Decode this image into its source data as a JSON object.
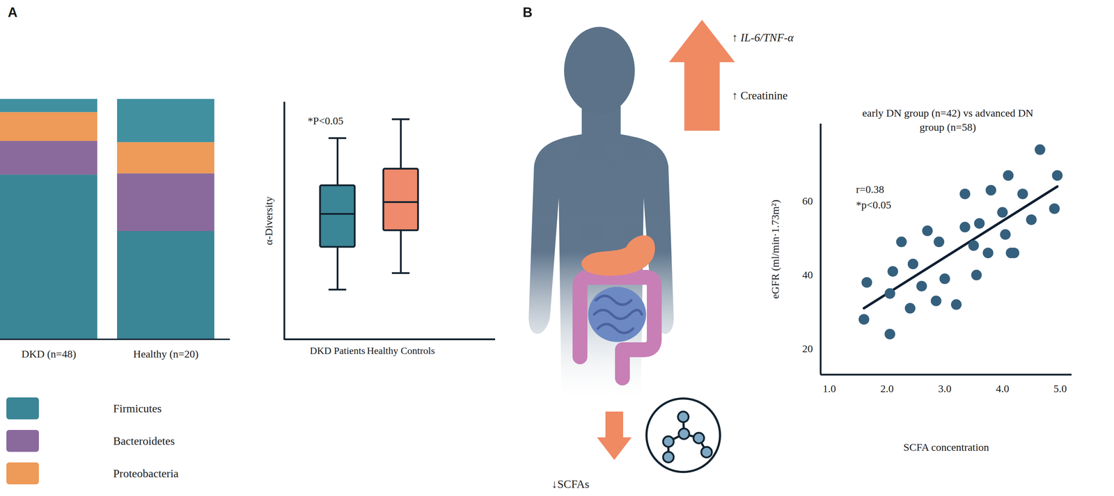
{
  "chart_data": [
    {
      "type": "bar",
      "panel": "A",
      "stacked": true,
      "categories": [
        "DKD (n=48)",
        "Healthy (n=20)"
      ],
      "series": [
        {
          "name": "Firmicutes",
          "color": "#3a8596",
          "values": [
            68.5,
            45
          ]
        },
        {
          "name": "Bacteroidetes",
          "color": "#8a6a9c",
          "values": [
            14,
            24
          ]
        },
        {
          "name": "Proteobacteria",
          "color": "#ee9a58",
          "values": [
            12,
            13
          ]
        },
        {
          "name": null,
          "color": "#4090a0",
          "values": [
            5.5,
            18
          ]
        }
      ],
      "ylim": [
        0,
        100
      ],
      "tick_labels": "x",
      "legend": "bottom-left"
    },
    {
      "type": "box",
      "annotations": [
        "*P<0.05"
      ],
      "categories": [
        "DKD Patients",
        "Healthy Controls"
      ],
      "ylabel": "α-Diversity",
      "colors": [
        "#3a8596",
        "#ef8a6c"
      ],
      "boxes": {
        "min": [
          2.1,
          2.8
        ],
        "q1": [
          3.9,
          4.6
        ],
        "median": [
          5.3,
          5.8
        ],
        "q3": [
          6.5,
          7.2
        ],
        "max": [
          8.5,
          9.3
        ]
      },
      "ylim": [
        0,
        10
      ],
      "tick_labels": "x"
    },
    {
      "type": "scatter",
      "panel": "B",
      "title": "early DN group (n=42) vs advanced DN group (n=58)",
      "annotations": [
        "r=0.38",
        "*p<0.05"
      ],
      "xlabel": "SCFA concentration",
      "ylabel": "eGFR (ml/min·1.73m²)",
      "color": "#35607d",
      "x": [
        1.6,
        1.65,
        2.05,
        2.05,
        2.1,
        2.25,
        2.4,
        2.45,
        2.6,
        2.7,
        2.85,
        2.9,
        3.0,
        3.2,
        3.35,
        3.35,
        3.5,
        3.55,
        3.6,
        3.75,
        3.8,
        4.0,
        4.05,
        4.1,
        4.15,
        4.2,
        4.35,
        4.5,
        4.65,
        4.9,
        4.95
      ],
      "values": [
        28,
        38,
        24,
        35,
        41,
        49,
        31,
        43,
        37,
        52,
        33,
        49,
        39,
        32,
        62,
        53,
        48,
        40,
        54,
        46,
        63,
        57,
        51,
        67,
        46,
        46,
        62,
        55,
        74,
        58,
        67
      ],
      "trendline": {
        "color": "#0f1f33",
        "x": [
          1.6,
          4.95
        ],
        "values": [
          31,
          64
        ]
      },
      "xlim": [
        0.85,
        5.2
      ],
      "xticks": [
        {
          "value": 1,
          "label": "1.0"
        },
        {
          "value": 2,
          "label": "2.0"
        },
        {
          "value": 3,
          "label": "3.0"
        },
        {
          "value": 4,
          "label": "4.0"
        },
        {
          "value": 5,
          "label": "5.0"
        }
      ],
      "ylim": [
        13,
        81
      ],
      "yticks": [
        20,
        40,
        60
      ]
    }
  ],
  "diagram": {
    "up": [
      "↑ IL-6/TNF-α",
      "↑ Creatinine"
    ],
    "down": "↓SCFAs"
  }
}
